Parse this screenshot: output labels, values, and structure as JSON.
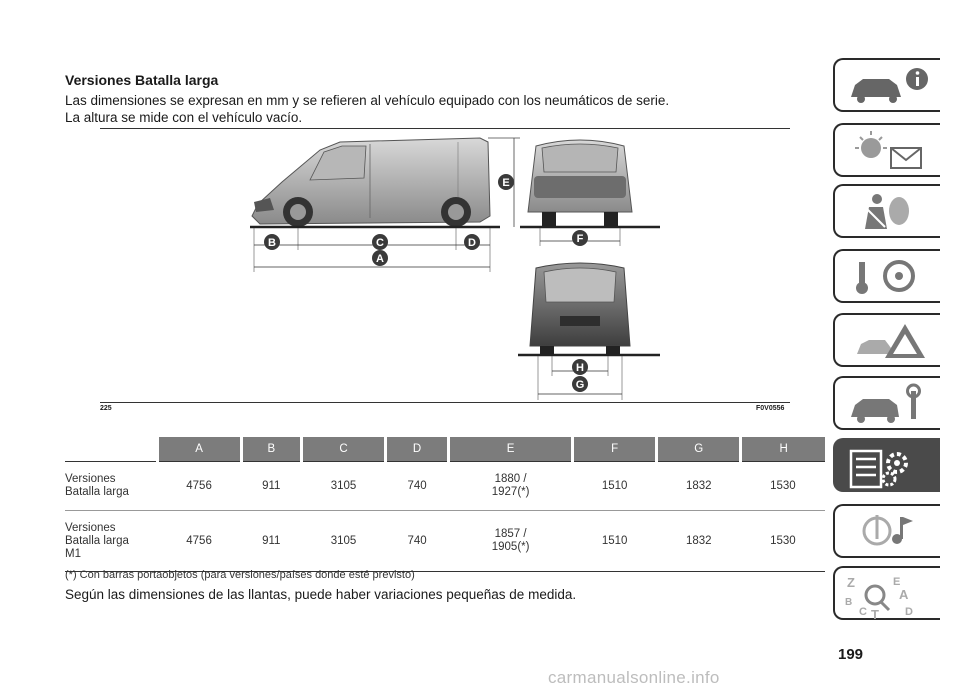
{
  "heading": "Versiones Batalla larga",
  "intro_lines": [
    "Las dimensiones se expresan en mm y se refieren al vehículo equipado con los neumáticos de serie.",
    "La altura se mide con el vehículo vacío."
  ],
  "figure": {
    "labels": {
      "a": "A",
      "b": "B",
      "c": "C",
      "d": "D",
      "e": "E",
      "f": "F",
      "g": "G",
      "h": "H"
    },
    "number": "225",
    "code": "F0V0556"
  },
  "table": {
    "headers": [
      "A",
      "B",
      "C",
      "D",
      "E",
      "F",
      "G",
      "H"
    ],
    "rows": [
      {
        "label_lines": [
          "Versiones",
          "Batalla larga"
        ],
        "a": "4756",
        "b": "911",
        "c": "3105",
        "d": "740",
        "e_lines": [
          "1880 /",
          "1927(*)"
        ],
        "f": "1510",
        "g": "1832",
        "h": "1530"
      },
      {
        "label_lines": [
          "Versiones",
          "Batalla larga",
          "M1"
        ],
        "a": "4756",
        "b": "911",
        "c": "3105",
        "d": "740",
        "e_lines": [
          "1857 /",
          "1905(*)"
        ],
        "f": "1510",
        "g": "1832",
        "h": "1530"
      }
    ]
  },
  "footnote": "(*) Con barras portaobjetos (para versiones/países donde esté previsto)",
  "note": "Según las dimensiones de las llantas, puede haber variaciones pequeñas de medida.",
  "page_number": "199",
  "watermark": "carmanualsonline.info",
  "side_tabs": [
    {
      "icon": "car-info-icon",
      "active": false
    },
    {
      "icon": "warning-lights-message-icon",
      "active": false
    },
    {
      "icon": "airbag-seatbelt-icon",
      "active": false
    },
    {
      "icon": "key-steering-wheel-icon",
      "active": false
    },
    {
      "icon": "emergency-triangle-icon",
      "active": false
    },
    {
      "icon": "maintenance-wrench-icon",
      "active": false
    },
    {
      "icon": "technical-data-gears-icon",
      "active": true
    },
    {
      "icon": "multimedia-music-icon",
      "active": false
    },
    {
      "icon": "alphabetical-index-icon",
      "active": false
    }
  ],
  "colors": {
    "table_header": "#7c7c7c",
    "active_tab": "#4a4a4a",
    "badge": "#3a3a3a"
  }
}
